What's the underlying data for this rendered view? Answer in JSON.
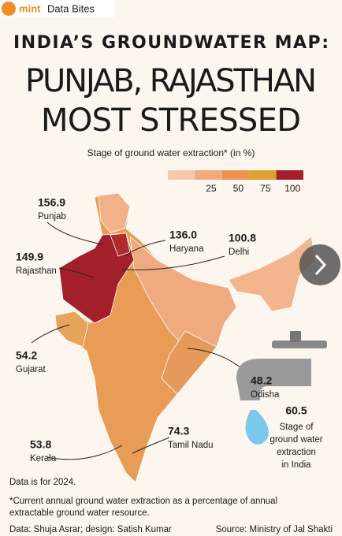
{
  "header": {
    "brand": "mint",
    "section": "Data Bites"
  },
  "title": [
    "INDIA’S GROUNDWATER MAP:",
    "PUNJAB, RAJASTHAN",
    "MOST STRESSED"
  ],
  "legend": {
    "title": "Stage of ground water extraction* (in %)",
    "ticks": [
      25,
      50,
      75,
      100
    ],
    "colors": [
      "#f7c8aa",
      "#f1ab7c",
      "#eb9450",
      "#dea032",
      "#a3202a"
    ]
  },
  "annotations": [
    {
      "value": "156.9",
      "label": "Punjab"
    },
    {
      "value": "136.0",
      "label": "Haryana"
    },
    {
      "value": "100.8",
      "label": "Delhi"
    },
    {
      "value": "149.9",
      "label": "Rajasthan"
    },
    {
      "value": "54.2",
      "label": "Gujarat"
    },
    {
      "value": "48.2",
      "label": "Odisha"
    },
    {
      "value": "53.8",
      "label": "Kerala"
    },
    {
      "value": "74.3",
      "label": "Tamil Nadu"
    }
  ],
  "india": {
    "value": "60.5",
    "label": [
      "Stage of",
      "ground water",
      "extraction",
      "in India"
    ]
  },
  "footer": {
    "year_note": "Data is for 2024.",
    "note": [
      "*Current annual ground water extraction as a percentage of annual",
      "extractable ground water resource."
    ],
    "credit": "Data: Shuja Asrar; design: Satish Kumar",
    "source": "Source: Ministry of Jal Shakti"
  }
}
